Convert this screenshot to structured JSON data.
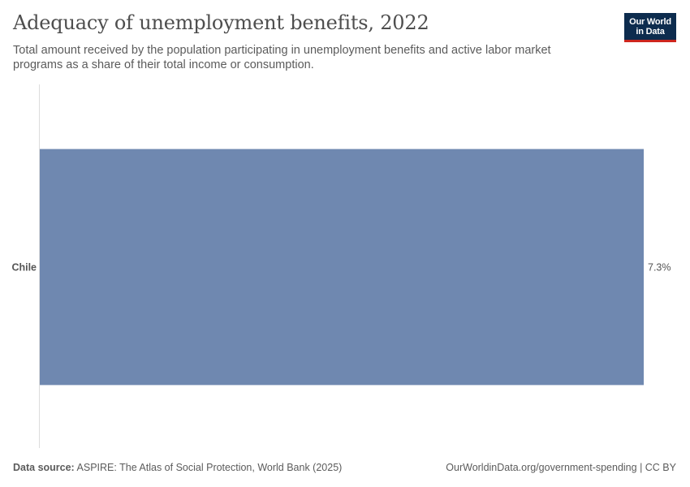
{
  "header": {
    "title": "Adequacy of unemployment benefits, 2022",
    "subtitle": "Total amount received by the population participating in unemployment benefits and active labor market programs as a share of their total income or consumption."
  },
  "logo": {
    "line1": "Our World",
    "line2": "in Data",
    "background": "#0d2c4e",
    "accent": "#ce261e"
  },
  "chart_data": {
    "type": "bar",
    "orientation": "horizontal",
    "categories": [
      "Chile"
    ],
    "values": [
      7.3
    ],
    "value_labels": [
      "7.3%"
    ],
    "unit": "%",
    "xlim": [
      0,
      7.3
    ],
    "grid": false,
    "bar_color": "#6f88b0",
    "title": "Adequacy of unemployment benefits, 2022",
    "xlabel": "",
    "ylabel": ""
  },
  "footer": {
    "source_label": "Data source:",
    "source_text": "ASPIRE: The Atlas of Social Protection, World Bank (2025)",
    "url_license": "OurWorldinData.org/government-spending | CC BY"
  }
}
